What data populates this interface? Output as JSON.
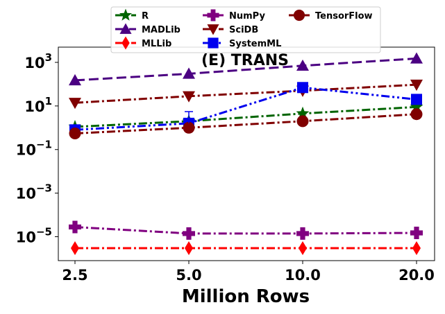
{
  "chart_data": {
    "type": "line",
    "title": "(E) TRANS",
    "xlabel": "Million Rows",
    "ylabel": "",
    "x": [
      2.5,
      5.0,
      10.0,
      20.0
    ],
    "x_tick_labels": [
      "2.5",
      "5.0",
      "10.0",
      "20.0"
    ],
    "y_scale": "log",
    "ylim": [
      8e-07,
      5000
    ],
    "y_ticks": [
      {
        "value": 1000,
        "base": "10",
        "exp": "3"
      },
      {
        "value": 10,
        "base": "10",
        "exp": "1"
      },
      {
        "value": 0.1,
        "base": "10",
        "exp": "−1"
      },
      {
        "value": 0.001,
        "base": "10",
        "exp": "−3"
      },
      {
        "value": 1e-05,
        "base": "10",
        "exp": "−5"
      }
    ],
    "grid": false,
    "legend_position": "top",
    "series": [
      {
        "name": "R",
        "color": "#006400",
        "dash": "dashdot",
        "marker": "star",
        "values": [
          1.1,
          2.0,
          4.5,
          9.0
        ]
      },
      {
        "name": "MADLib",
        "color": "#4b0082",
        "dash": "dashed",
        "marker": "triangle-up",
        "values": [
          150,
          300,
          700,
          1500
        ]
      },
      {
        "name": "MLLib",
        "color": "#ff0000",
        "dash": "dashdot",
        "marker": "thin-diamond",
        "values": 3e-06
      },
      {
        "name": "NumPy",
        "color": "#800080",
        "dash": "dashdot",
        "marker": "plus",
        "values": [
          2.8e-05,
          1.4e-05,
          1.4e-05,
          1.5e-05
        ]
      },
      {
        "name": "SciDB",
        "color": "#800000",
        "dash": "dashdot",
        "marker": "triangle-down",
        "values": [
          14,
          28,
          50,
          95
        ]
      },
      {
        "name": "SystemML",
        "color": "#0000ee",
        "dash": "dashdotdot",
        "marker": "square",
        "values": [
          0.8,
          1.6,
          70,
          20
        ]
      },
      {
        "name": "TensorFlow",
        "color": "#800000",
        "dash": "dashdot",
        "marker": "circle",
        "values": [
          0.55,
          1.0,
          2.0,
          4.2
        ]
      }
    ]
  }
}
